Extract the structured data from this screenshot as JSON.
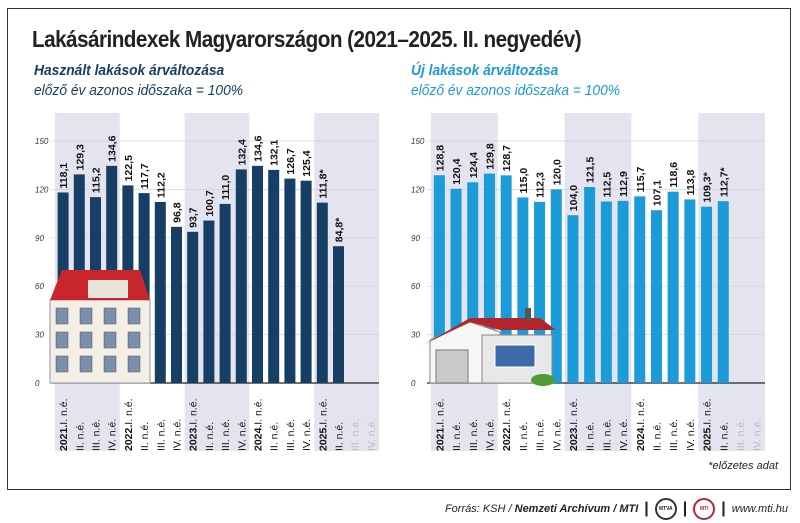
{
  "title": "Lakásárindexek Magyarországon (2021–2025. II. negyedév)",
  "footnote": "*előzetes adat",
  "footer": {
    "source_prefix": "Forrás: KSH / ",
    "archive": "Nemzeti Archívum / MTI",
    "logo1": "MTVA",
    "logo2": "MTI",
    "url": "www.mti.hu"
  },
  "colors": {
    "used": "#173f66",
    "new": "#1b9bd7",
    "band": "#e4e4f0",
    "grid": "#d0d0dc"
  },
  "chart_data": [
    {
      "type": "bar",
      "title": "Használt lakások árváltozása",
      "subtitle": "előző év azonos időszaka = 100%",
      "ylim": [
        0,
        150
      ],
      "yticks": [
        0,
        30,
        60,
        90,
        120,
        150
      ],
      "categories": [
        "2021.I. n.é.",
        "II. n.é.",
        "III. n.é.",
        "IV. n.é.",
        "2022.I. n.é.",
        "II. n.é.",
        "III. n.é.",
        "IV. n.é.",
        "2023.I. n.é.",
        "II. n.é.",
        "III. n.é.",
        "IV. n.é.",
        "2024.I. n.é.",
        "II. n.é.",
        "III. n.é.",
        "IV. n.é.",
        "2025.I. n.é.",
        "II. n.é.",
        "III. n.é.",
        "IV. n.é."
      ],
      "values": [
        118.1,
        129.3,
        115.2,
        134.6,
        122.5,
        117.7,
        112.2,
        96.8,
        93.7,
        100.7,
        111.0,
        132.4,
        134.6,
        132.1,
        126.7,
        125.4,
        111.8,
        84.8,
        null,
        null
      ],
      "labels": [
        "118,1",
        "129,3",
        "115,2",
        "134,6",
        "122,5",
        "117,7",
        "112,2",
        "96,8",
        "93,7",
        "100,7",
        "111,0",
        "132,4",
        "134,6",
        "132,1",
        "126,7",
        "125,4",
        "111,8*",
        "84,8*"
      ],
      "grid": true
    },
    {
      "type": "bar",
      "title": "Új lakások árváltozása",
      "subtitle": "előző év azonos időszaka = 100%",
      "ylim": [
        0,
        150
      ],
      "yticks": [
        0,
        30,
        60,
        90,
        120,
        150
      ],
      "categories": [
        "2021.I. n.é.",
        "II. n.é.",
        "III. n.é.",
        "IV. n.é.",
        "2022.I. n.é.",
        "II. n.é.",
        "III. n.é.",
        "IV. n.é.",
        "2023.I. n.é.",
        "II. n.é.",
        "III. n.é.",
        "IV. n.é.",
        "2024.I. n.é.",
        "II. n.é.",
        "III. n.é.",
        "IV. n.é.",
        "2025.I. n.é.",
        "II. n.é.",
        "III. n.é.",
        "IV. n.é."
      ],
      "values": [
        128.8,
        120.4,
        124.4,
        129.8,
        128.7,
        115.0,
        112.3,
        120.0,
        104.0,
        121.5,
        112.5,
        112.9,
        115.7,
        107.1,
        118.6,
        113.8,
        109.3,
        112.7,
        null,
        null
      ],
      "labels": [
        "128,8",
        "120,4",
        "124,4",
        "129,8",
        "128,7",
        "115,0",
        "112,3",
        "120,0",
        "104,0",
        "121,5",
        "112,5",
        "112,9",
        "115,7",
        "107,1",
        "118,6",
        "113,8",
        "109,3*",
        "112,7*"
      ],
      "grid": true
    }
  ]
}
